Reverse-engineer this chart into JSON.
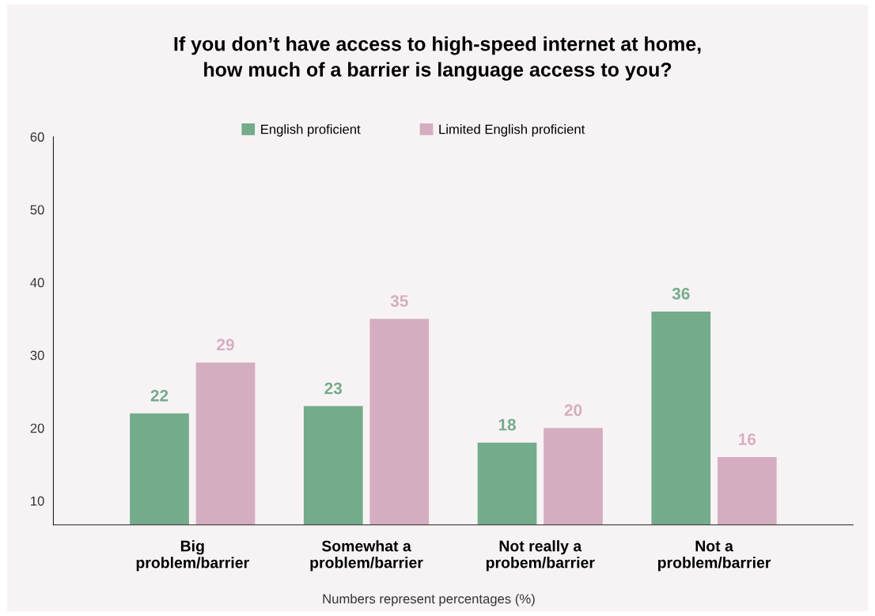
{
  "chart_data": {
    "type": "bar",
    "title": "If you don’t have access to high-speed internet at home,\nhow much of a barrier is language access to you?",
    "categories": [
      "Big\nproblem/barrier",
      "Somewhat a\nproblem/barrier",
      "Not really a\nprobem/barrier",
      "Not a\nproblem/barrier"
    ],
    "series": [
      {
        "name": "English proficient",
        "color": "#74ab8b",
        "values": [
          22,
          23,
          18,
          36
        ]
      },
      {
        "name": "Limited English proficient",
        "color": "#d5adc0",
        "values": [
          29,
          35,
          20,
          16
        ]
      }
    ],
    "ylim": [
      6.7,
      60
    ],
    "yticks": [
      10,
      20,
      30,
      40,
      50,
      60
    ],
    "data_labels": true,
    "grid": false,
    "legend": "top",
    "annotations": [
      "Numbers represent percentages (%)"
    ]
  }
}
